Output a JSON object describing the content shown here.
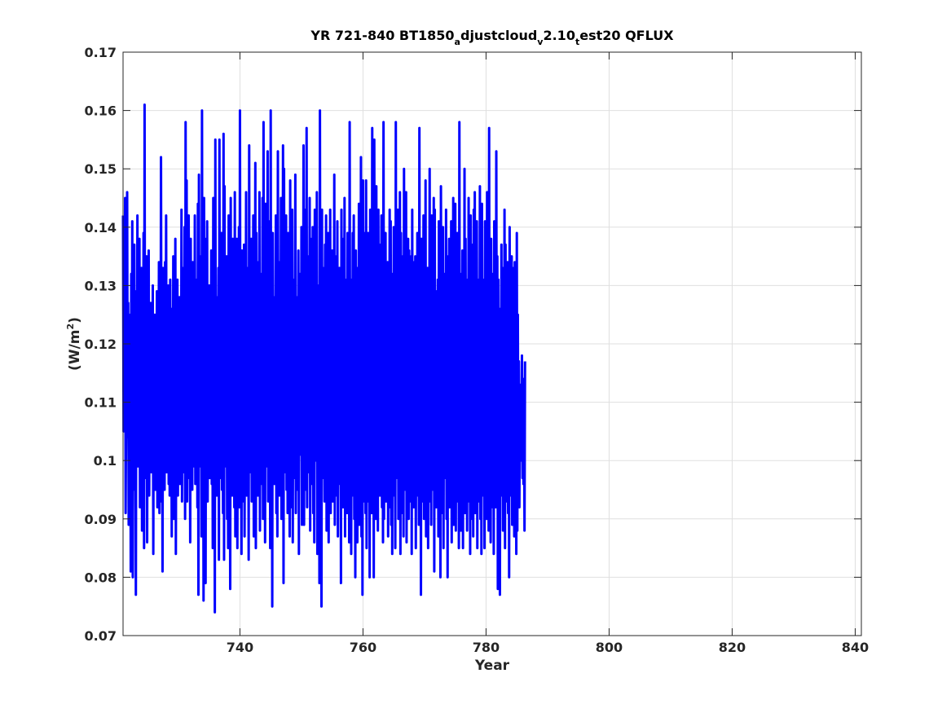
{
  "chart_data": {
    "type": "line",
    "title": {
      "prefix": "YR 721-840 BT1850",
      "sub1": "a",
      "mid": "djustcloud",
      "sub2": "v",
      "mid2": "2.10",
      "sub3": "t",
      "suffix": "est20 QFLUX"
    },
    "xlabel": "Year",
    "ylabel": {
      "prefix": "(W/m",
      "sup": "2",
      "suffix": ")"
    },
    "xlim": [
      721,
      841
    ],
    "ylim": [
      0.07,
      0.17
    ],
    "xticks": [
      740,
      760,
      780,
      800,
      820,
      840
    ],
    "xtick_labels": [
      "740",
      "760",
      "780",
      "800",
      "820",
      "840"
    ],
    "yticks": [
      0.07,
      0.08,
      0.09,
      0.1,
      0.11,
      0.12,
      0.13,
      0.14,
      0.15,
      0.16,
      0.17
    ],
    "ytick_labels": [
      "0.07",
      "0.08",
      "0.09",
      "0.1",
      "0.11",
      "0.12",
      "0.13",
      "0.14",
      "0.15",
      "0.16",
      "0.17"
    ],
    "grid": true,
    "series": [
      {
        "color": "#0000ff",
        "x_start": 721,
        "x_step": 0.0833333,
        "values": [
          0.142,
          0.105,
          0.134,
          0.118,
          0.145,
          0.091,
          0.108,
          0.119,
          0.146,
          0.104,
          0.127,
          0.089,
          0.121,
          0.11,
          0.125,
          0.081,
          0.132,
          0.093,
          0.141,
          0.08,
          0.119,
          0.101,
          0.137,
          0.095,
          0.114,
          0.077,
          0.129,
          0.106,
          0.142,
          0.099,
          0.118,
          0.109,
          0.138,
          0.092,
          0.124,
          0.103,
          0.133,
          0.088,
          0.121,
          0.107,
          0.139,
          0.085,
          0.161,
          0.097,
          0.117,
          0.112,
          0.135,
          0.086,
          0.128,
          0.101,
          0.136,
          0.094,
          0.118,
          0.107,
          0.127,
          0.098,
          0.122,
          0.104,
          0.13,
          0.084,
          0.121,
          0.103,
          0.125,
          0.095,
          0.114,
          0.1,
          0.129,
          0.092,
          0.117,
          0.106,
          0.134,
          0.091,
          0.128,
          0.093,
          0.152,
          0.104,
          0.119,
          0.081,
          0.133,
          0.101,
          0.124,
          0.095,
          0.134,
          0.107,
          0.142,
          0.098,
          0.126,
          0.102,
          0.13,
          0.096,
          0.12,
          0.094,
          0.131,
          0.098,
          0.112,
          0.087,
          0.126,
          0.103,
          0.135,
          0.09,
          0.117,
          0.108,
          0.138,
          0.084,
          0.122,
          0.1,
          0.131,
          0.094,
          0.118,
          0.105,
          0.128,
          0.096,
          0.114,
          0.101,
          0.143,
          0.093,
          0.133,
          0.098,
          0.116,
          0.104,
          0.14,
          0.09,
          0.158,
          0.099,
          0.148,
          0.093,
          0.122,
          0.105,
          0.142,
          0.097,
          0.119,
          0.086,
          0.138,
          0.101,
          0.126,
          0.095,
          0.134,
          0.103,
          0.111,
          0.099,
          0.142,
          0.096,
          0.119,
          0.108,
          0.131,
          0.092,
          0.144,
          0.077,
          0.149,
          0.099,
          0.121,
          0.104,
          0.135,
          0.087,
          0.16,
          0.094,
          0.128,
          0.076,
          0.145,
          0.1,
          0.124,
          0.079,
          0.138,
          0.102,
          0.141,
          0.093,
          0.118,
          0.108,
          0.13,
          0.097,
          0.117,
          0.103,
          0.136,
          0.096,
          0.127,
          0.085,
          0.145,
          0.092,
          0.121,
          0.074,
          0.155,
          0.101,
          0.128,
          0.094,
          0.12,
          0.108,
          0.133,
          0.083,
          0.155,
          0.097,
          0.118,
          0.104,
          0.139,
          0.095,
          0.124,
          0.091,
          0.156,
          0.083,
          0.147,
          0.099,
          0.121,
          0.108,
          0.135,
          0.09,
          0.119,
          0.085,
          0.142,
          0.102,
          0.129,
          0.078,
          0.145,
          0.101,
          0.127,
          0.094,
          0.138,
          0.104,
          0.131,
          0.092,
          0.146,
          0.087,
          0.126,
          0.098,
          0.138,
          0.085,
          0.123,
          0.106,
          0.14,
          0.092,
          0.16,
          0.099,
          0.129,
          0.084,
          0.136,
          0.093,
          0.115,
          0.1,
          0.137,
          0.087,
          0.125,
          0.102,
          0.146,
          0.094,
          0.127,
          0.106,
          0.133,
          0.083,
          0.154,
          0.098,
          0.119,
          0.105,
          0.138,
          0.093,
          0.131,
          0.101,
          0.142,
          0.087,
          0.128,
          0.099,
          0.151,
          0.085,
          0.139,
          0.097,
          0.12,
          0.094,
          0.134,
          0.104,
          0.146,
          0.088,
          0.125,
          0.107,
          0.132,
          0.096,
          0.145,
          0.09,
          0.158,
          0.096,
          0.131,
          0.086,
          0.144,
          0.099,
          0.127,
          0.105,
          0.153,
          0.093,
          0.124,
          0.101,
          0.141,
          0.085,
          0.16,
          0.092,
          0.131,
          0.075,
          0.139,
          0.104,
          0.128,
          0.096,
          0.122,
          0.105,
          0.142,
          0.091,
          0.129,
          0.087,
          0.153,
          0.1,
          0.134,
          0.094,
          0.12,
          0.103,
          0.145,
          0.09,
          0.126,
          0.098,
          0.154,
          0.079,
          0.15,
          0.098,
          0.123,
          0.105,
          0.142,
          0.095,
          0.134,
          0.091,
          0.139,
          0.1,
          0.121,
          0.087,
          0.148,
          0.092,
          0.133,
          0.1,
          0.143,
          0.086,
          0.121,
          0.097,
          0.131,
          0.108,
          0.149,
          0.091,
          0.122,
          0.103,
          0.128,
          0.095,
          0.136,
          0.084,
          0.132,
          0.101,
          0.119,
          0.106,
          0.14,
          0.089,
          0.121,
          0.103,
          0.154,
          0.089,
          0.128,
          0.095,
          0.143,
          0.104,
          0.157,
          0.092,
          0.135,
          0.106,
          0.126,
          0.098,
          0.145,
          0.088,
          0.138,
          0.102,
          0.129,
          0.096,
          0.14,
          0.091,
          0.127,
          0.086,
          0.143,
          0.105,
          0.12,
          0.1,
          0.146,
          0.084,
          0.13,
          0.102,
          0.129,
          0.079,
          0.16,
          0.093,
          0.125,
          0.075,
          0.143,
          0.097,
          0.133,
          0.104,
          0.12,
          0.093,
          0.137,
          0.101,
          0.142,
          0.088,
          0.127,
          0.095,
          0.139,
          0.086,
          0.13,
          0.102,
          0.143,
          0.091,
          0.125,
          0.098,
          0.136,
          0.093,
          0.121,
          0.106,
          0.149,
          0.089,
          0.128,
          0.099,
          0.135,
          0.094,
          0.141,
          0.087,
          0.125,
          0.104,
          0.133,
          0.096,
          0.128,
          0.079,
          0.143,
          0.099,
          0.12,
          0.092,
          0.138,
          0.104,
          0.145,
          0.087,
          0.131,
          0.098,
          0.127,
          0.091,
          0.139,
          0.097,
          0.132,
          0.086,
          0.158,
          0.101,
          0.129,
          0.084,
          0.131,
          0.094,
          0.139,
          0.103,
          0.142,
          0.09,
          0.123,
          0.08,
          0.136,
          0.096,
          0.133,
          0.086,
          0.13,
          0.097,
          0.144,
          0.089,
          0.135,
          0.102,
          0.152,
          0.087,
          0.13,
          0.077,
          0.148,
          0.1,
          0.139,
          0.093,
          0.128,
          0.091,
          0.148,
          0.085,
          0.125,
          0.101,
          0.139,
          0.093,
          0.131,
          0.08,
          0.143,
          0.098,
          0.121,
          0.091,
          0.157,
          0.096,
          0.131,
          0.08,
          0.155,
          0.101,
          0.126,
          0.09,
          0.147,
          0.097,
          0.121,
          0.088,
          0.143,
          0.105,
          0.137,
          0.094,
          0.127,
          0.098,
          0.142,
          0.092,
          0.131,
          0.086,
          0.158,
          0.09,
          0.13,
          0.098,
          0.139,
          0.093,
          0.126,
          0.1,
          0.134,
          0.087,
          0.127,
          0.092,
          0.143,
          0.1,
          0.141,
          0.089,
          0.13,
          0.084,
          0.132,
          0.102,
          0.14,
          0.094,
          0.121,
          0.085,
          0.158,
          0.097,
          0.132,
          0.101,
          0.143,
          0.09,
          0.122,
          0.098,
          0.146,
          0.084,
          0.139,
          0.104,
          0.135,
          0.091,
          0.128,
          0.087,
          0.15,
          0.1,
          0.126,
          0.095,
          0.146,
          0.086,
          0.131,
          0.097,
          0.138,
          0.09,
          0.136,
          0.1,
          0.128,
          0.093,
          0.135,
          0.084,
          0.143,
          0.098,
          0.13,
          0.092,
          0.134,
          0.1,
          0.135,
          0.085,
          0.121,
          0.094,
          0.139,
          0.097,
          0.13,
          0.089,
          0.157,
          0.096,
          0.128,
          0.077,
          0.138,
          0.101,
          0.124,
          0.093,
          0.142,
          0.09,
          0.131,
          0.096,
          0.148,
          0.087,
          0.126,
          0.099,
          0.133,
          0.085,
          0.121,
          0.102,
          0.15,
          0.093,
          0.13,
          0.089,
          0.142,
          0.095,
          0.136,
          0.1,
          0.145,
          0.081,
          0.143,
          0.096,
          0.126,
          0.092,
          0.129,
          0.1,
          0.131,
          0.087,
          0.141,
          0.093,
          0.126,
          0.08,
          0.147,
          0.098,
          0.132,
          0.091,
          0.14,
          0.085,
          0.124,
          0.1,
          0.132,
          0.097,
          0.143,
          0.09,
          0.121,
          0.08,
          0.135,
          0.096,
          0.138,
          0.092,
          0.128,
          0.098,
          0.141,
          0.086,
          0.13,
          0.1,
          0.145,
          0.089,
          0.135,
          0.095,
          0.144,
          0.088,
          0.127,
          0.097,
          0.139,
          0.093,
          0.13,
          0.085,
          0.158,
          0.094,
          0.132,
          0.088,
          0.128,
          0.099,
          0.136,
          0.085,
          0.136,
          0.096,
          0.15,
          0.091,
          0.138,
          0.1,
          0.129,
          0.088,
          0.131,
          0.095,
          0.145,
          0.093,
          0.126,
          0.084,
          0.142,
          0.098,
          0.137,
          0.09,
          0.133,
          0.087,
          0.143,
          0.094,
          0.146,
          0.091,
          0.123,
          0.099,
          0.141,
          0.085,
          0.131,
          0.1,
          0.127,
          0.093,
          0.147,
          0.09,
          0.14,
          0.084,
          0.144,
          0.098,
          0.131,
          0.094,
          0.128,
          0.085,
          0.141,
          0.097,
          0.133,
          0.09,
          0.146,
          0.094,
          0.134,
          0.088,
          0.157,
          0.095,
          0.131,
          0.086,
          0.138,
          0.099,
          0.129,
          0.092,
          0.132,
          0.084,
          0.141,
          0.1,
          0.129,
          0.092,
          0.153,
          0.1,
          0.135,
          0.078,
          0.131,
          0.097,
          0.122,
          0.077,
          0.126,
          0.098,
          0.137,
          0.094,
          0.133,
          0.088,
          0.131,
          0.091,
          0.143,
          0.085,
          0.137,
          0.093,
          0.128,
          0.098,
          0.134,
          0.091,
          0.13,
          0.08,
          0.14,
          0.094,
          0.129,
          0.097,
          0.135,
          0.089,
          0.133,
          0.095,
          0.128,
          0.087,
          0.134,
          0.099,
          0.123,
          0.084,
          0.139,
          0.088,
          0.125,
          0.097,
          0.117,
          0.092,
          0.113,
          0.105,
          0.109,
          0.1,
          0.118,
          0.097,
          0.114,
          0.096,
          0.112,
          0.088,
          0.117
        ]
      }
    ]
  }
}
